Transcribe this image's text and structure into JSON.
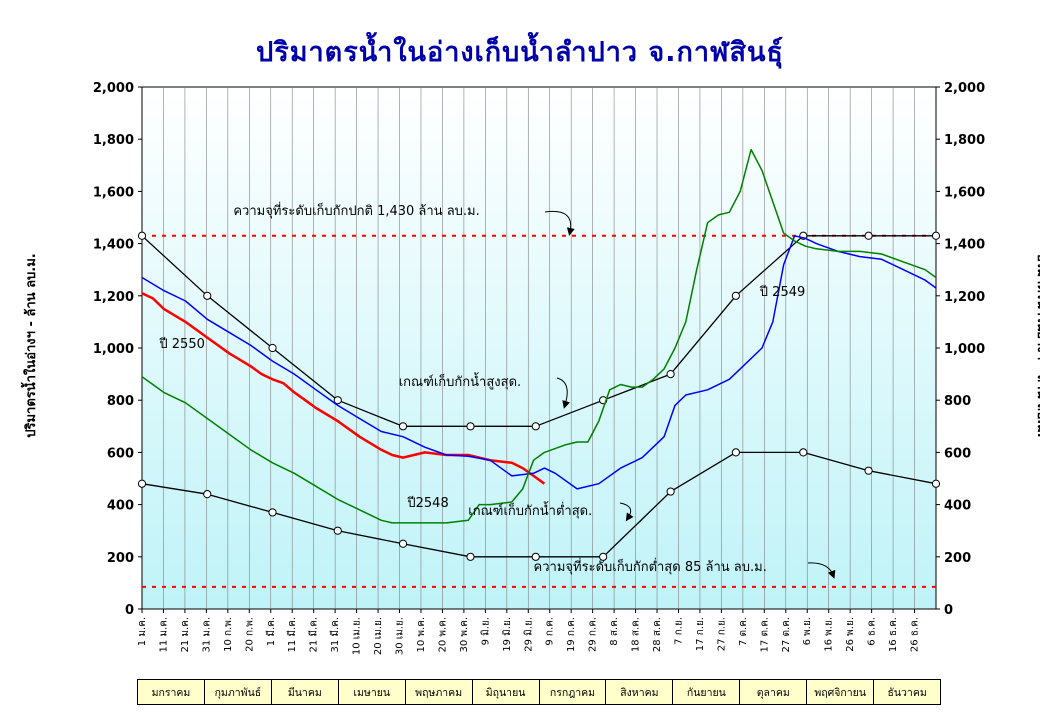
{
  "chart_data": {
    "type": "line",
    "title": "ปริมาตรน้ำในอ่างเก็บน้ำลำปาว จ.กาฬสินธุ์",
    "ylabel_left": "ปริมาตรน้ำในอ่างฯ - ล้าน ลบ.ม.",
    "ylabel_right": "ปริมาตรน้ำในอ่างฯ - ล้าน ลบ.ม.",
    "ylim": [
      0,
      2000
    ],
    "yticks": [
      "0",
      "200",
      "400",
      "600",
      "800",
      "1,000",
      "1,200",
      "1,400",
      "1,600",
      "1,800",
      "2,000"
    ],
    "xticks": [
      "1 ม.ค.",
      "11 ม.ค.",
      "21 ม.ค.",
      "31 ม.ค.",
      "10 ก.พ.",
      "20 ก.พ.",
      "1 มี.ค.",
      "11 มี.ค.",
      "21 มี.ค.",
      "31 มี.ค.",
      "10 เม.ย.",
      "20 เม.ย.",
      "30 เม.ย.",
      "10 พ.ค.",
      "20 พ.ค.",
      "30 พ.ค.",
      "9 มิ.ย.",
      "19 มิ.ย.",
      "29 มิ.ย.",
      "9 ก.ค.",
      "19 ก.ค.",
      "29 ก.ค.",
      "8 ส.ค.",
      "18 ส.ค.",
      "28 ส.ค.",
      "7 ก.ย.",
      "17 ก.ย.",
      "27 ก.ย.",
      "7 ต.ค.",
      "17 ต.ค.",
      "27 ต.ค.",
      "6 พ.ย.",
      "16 พ.ย.",
      "26 พ.ย.",
      "6 ธ.ค.",
      "16 ธ.ค.",
      "26 ธ.ค."
    ],
    "months": [
      "มกราคม",
      "กุมภาพันธ์",
      "มีนาคม",
      "เมษายน",
      "พฤษภาคม",
      "มิถุนายน",
      "กรกฎาคม",
      "สิงหาคม",
      "กันยายน",
      "ตุลาคม",
      "พฤศจิกายน",
      "ธันวาคม"
    ],
    "xlim": [
      0,
      365
    ],
    "ref_lines": [
      {
        "value": 1430,
        "color": "#ff0000",
        "label": "ความจุที่ระดับเก็บกักปกติ 1,430 ล้าน ลบ.ม."
      },
      {
        "value": 85,
        "color": "#ff0000",
        "label": "ความจุที่ระดับเก็บกักต่ำสุด  85 ล้าน ลบ.ม."
      }
    ],
    "series": [
      {
        "name": "เกณฑ์เก็บกักน้ำสูงสุด.",
        "color": "#000000",
        "markers": true,
        "points": [
          [
            0,
            1430
          ],
          [
            30,
            1200
          ],
          [
            60,
            1000
          ],
          [
            90,
            800
          ],
          [
            120,
            700
          ],
          [
            151,
            700
          ],
          [
            181,
            700
          ],
          [
            212,
            800
          ],
          [
            243,
            900
          ],
          [
            273,
            1200
          ],
          [
            304,
            1430
          ],
          [
            334,
            1430
          ],
          [
            365,
            1430
          ]
        ]
      },
      {
        "name": "เกณฑ์เก็บกักน้ำต่ำสุด.",
        "color": "#000000",
        "markers": true,
        "points": [
          [
            0,
            480
          ],
          [
            30,
            440
          ],
          [
            60,
            370
          ],
          [
            90,
            300
          ],
          [
            120,
            250
          ],
          [
            151,
            200
          ],
          [
            181,
            200
          ],
          [
            212,
            200
          ],
          [
            243,
            450
          ],
          [
            273,
            600
          ],
          [
            304,
            600
          ],
          [
            334,
            530
          ],
          [
            365,
            480
          ]
        ]
      },
      {
        "name": "ปี 2550",
        "color": "#ff0000",
        "width": 2.5,
        "points": [
          [
            0,
            1210
          ],
          [
            5,
            1190
          ],
          [
            10,
            1150
          ],
          [
            20,
            1100
          ],
          [
            30,
            1040
          ],
          [
            40,
            980
          ],
          [
            50,
            930
          ],
          [
            55,
            900
          ],
          [
            60,
            880
          ],
          [
            65,
            865
          ],
          [
            70,
            830
          ],
          [
            75,
            800
          ],
          [
            80,
            770
          ],
          [
            90,
            720
          ],
          [
            100,
            660
          ],
          [
            110,
            610
          ],
          [
            115,
            590
          ],
          [
            120,
            580
          ],
          [
            125,
            590
          ],
          [
            130,
            600
          ],
          [
            140,
            590
          ],
          [
            150,
            590
          ],
          [
            160,
            570
          ],
          [
            170,
            560
          ],
          [
            175,
            540
          ],
          [
            180,
            510
          ],
          [
            185,
            480
          ]
        ]
      },
      {
        "name": "ปี 2549",
        "color": "#0000ff",
        "width": 1.5,
        "points": [
          [
            0,
            1270
          ],
          [
            10,
            1220
          ],
          [
            20,
            1180
          ],
          [
            30,
            1110
          ],
          [
            40,
            1060
          ],
          [
            50,
            1010
          ],
          [
            60,
            950
          ],
          [
            70,
            900
          ],
          [
            80,
            840
          ],
          [
            90,
            780
          ],
          [
            100,
            730
          ],
          [
            110,
            680
          ],
          [
            120,
            660
          ],
          [
            130,
            620
          ],
          [
            140,
            590
          ],
          [
            150,
            585
          ],
          [
            160,
            570
          ],
          [
            170,
            510
          ],
          [
            180,
            520
          ],
          [
            185,
            540
          ],
          [
            190,
            520
          ],
          [
            200,
            460
          ],
          [
            210,
            480
          ],
          [
            220,
            540
          ],
          [
            230,
            580
          ],
          [
            240,
            660
          ],
          [
            245,
            780
          ],
          [
            250,
            820
          ],
          [
            260,
            840
          ],
          [
            270,
            880
          ],
          [
            275,
            920
          ],
          [
            285,
            1000
          ],
          [
            290,
            1100
          ],
          [
            295,
            1320
          ],
          [
            300,
            1430
          ],
          [
            305,
            1420
          ],
          [
            310,
            1400
          ],
          [
            320,
            1370
          ],
          [
            330,
            1350
          ],
          [
            340,
            1340
          ],
          [
            350,
            1300
          ],
          [
            360,
            1260
          ],
          [
            365,
            1230
          ]
        ]
      },
      {
        "name": "ปี2548",
        "color": "#008000",
        "width": 1.5,
        "points": [
          [
            0,
            890
          ],
          [
            10,
            830
          ],
          [
            20,
            790
          ],
          [
            30,
            730
          ],
          [
            40,
            670
          ],
          [
            50,
            610
          ],
          [
            60,
            560
          ],
          [
            70,
            520
          ],
          [
            80,
            470
          ],
          [
            90,
            420
          ],
          [
            100,
            380
          ],
          [
            110,
            340
          ],
          [
            115,
            330
          ],
          [
            120,
            330
          ],
          [
            130,
            330
          ],
          [
            140,
            330
          ],
          [
            150,
            340
          ],
          [
            155,
            400
          ],
          [
            160,
            400
          ],
          [
            170,
            410
          ],
          [
            175,
            460
          ],
          [
            180,
            570
          ],
          [
            185,
            600
          ],
          [
            195,
            630
          ],
          [
            200,
            640
          ],
          [
            205,
            640
          ],
          [
            210,
            720
          ],
          [
            215,
            840
          ],
          [
            220,
            860
          ],
          [
            225,
            850
          ],
          [
            230,
            850
          ],
          [
            235,
            880
          ],
          [
            240,
            920
          ],
          [
            245,
            1000
          ],
          [
            250,
            1100
          ],
          [
            255,
            1300
          ],
          [
            260,
            1480
          ],
          [
            265,
            1510
          ],
          [
            270,
            1520
          ],
          [
            275,
            1600
          ],
          [
            280,
            1760
          ],
          [
            285,
            1680
          ],
          [
            290,
            1560
          ],
          [
            295,
            1440
          ],
          [
            300,
            1410
          ],
          [
            305,
            1390
          ],
          [
            310,
            1380
          ],
          [
            320,
            1370
          ],
          [
            330,
            1370
          ],
          [
            340,
            1360
          ],
          [
            350,
            1330
          ],
          [
            360,
            1300
          ],
          [
            365,
            1270
          ]
        ]
      }
    ],
    "annotations": [
      {
        "text": "ปี 2550",
        "x": 8,
        "y": 1000
      },
      {
        "text": "ปี 2549",
        "x": 284,
        "y": 1200
      },
      {
        "text": "ปี2548",
        "x": 122,
        "y": 390
      },
      {
        "text": "เกณฑ์เก็บกักน้ำสูงสุด.",
        "x": 118,
        "y": 855
      },
      {
        "text": "เกณฑ์เก็บกักน้ำต่ำสุด.",
        "x": 150,
        "y": 360
      },
      {
        "text": "ความจุที่ระดับเก็บกักปกติ 1,430 ล้าน ลบ.ม.",
        "x": 42,
        "y": 1510
      },
      {
        "text": "ความจุที่ระดับเก็บกักต่ำสุด  85 ล้าน ลบ.ม.",
        "x": 180,
        "y": 145
      }
    ],
    "grid": "vertical",
    "background_top": "#ffffff",
    "background_bottom": "#bff3f8"
  }
}
